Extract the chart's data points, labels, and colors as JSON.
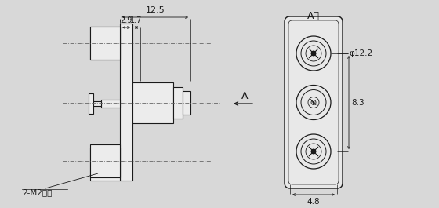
{
  "bg_color": "#d8d8d8",
  "line_color": "#1a1a1a",
  "fig_w": 5.6,
  "fig_h": 2.65,
  "dpi": 100,
  "dim_12_5": "12.5",
  "dim_2_9": "2.9",
  "dim_1_7": "1.7",
  "dim_phi_12_2": "φ12.2",
  "dim_8_3": "8.3",
  "dim_4_8": "4.8",
  "label_A": "A",
  "label_A_dir": "A向",
  "label_screw": "2-M2螺钉"
}
